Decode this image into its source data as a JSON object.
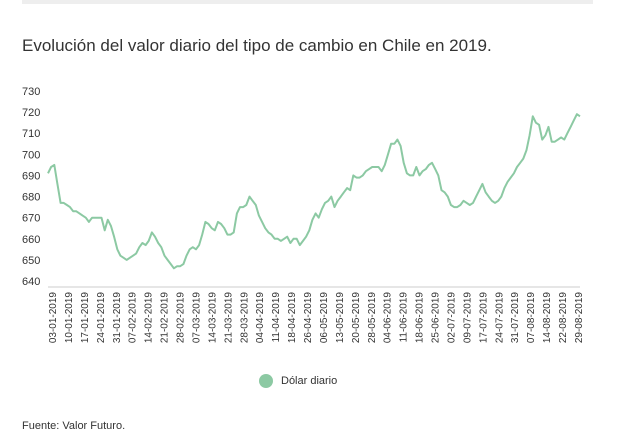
{
  "title": "Evolución del valor diario del tipo de cambio en Chile en 2019.",
  "source": "Fuente: Valor Futuro.",
  "colors": {
    "line": "#8cc9a3",
    "text": "#333333"
  },
  "chart_data": {
    "type": "line",
    "title": "Evolución del valor diario del tipo de cambio en Chile en 2019.",
    "xlabel": "",
    "ylabel": "",
    "ylim": [
      640,
      730
    ],
    "yticks": [
      730,
      720,
      710,
      700,
      690,
      680,
      670,
      660,
      650,
      640
    ],
    "grid": false,
    "legend": "bottom",
    "x_tick_labels": [
      "03-01-2019",
      "10-01-2019",
      "17-01-2019",
      "24-01-2019",
      "31-01-2019",
      "07-02-2019",
      "14-02-2019",
      "21-02-2019",
      "28-02-2019",
      "07-03-2019",
      "14-03-2019",
      "21-03-2019",
      "28-03-2019",
      "04-04-2019",
      "11-04-2019",
      "18-04-2019",
      "26-04-2019",
      "06-05-2019",
      "13-05-2019",
      "20-05-2019",
      "28-05-2019",
      "04-06-2019",
      "11-06-2019",
      "18-06-2019",
      "25-06-2019",
      "02-07-2019",
      "09-07-2019",
      "17-07-2019",
      "24-07-2019",
      "31-07-2019",
      "07-08-2019",
      "14-08-2019",
      "22-08-2019",
      "29-08-2019"
    ],
    "series": [
      {
        "name": "Dólar diario",
        "values": [
          691,
          694,
          695,
          686,
          677,
          677,
          676,
          675,
          673,
          673,
          672,
          671,
          670,
          668,
          670,
          670,
          670,
          670,
          664,
          669,
          666,
          661,
          655,
          652,
          651,
          650,
          651,
          652,
          653,
          656,
          658,
          657,
          659,
          663,
          661,
          658,
          656,
          652,
          650,
          648,
          646,
          647,
          647,
          648,
          652,
          655,
          656,
          655,
          657,
          662,
          668,
          667,
          665,
          664,
          668,
          667,
          665,
          662,
          662,
          663,
          672,
          675,
          675,
          676,
          680,
          678,
          676,
          671,
          668,
          665,
          663,
          662,
          660,
          660,
          659,
          660,
          661,
          658,
          660,
          660,
          657,
          659,
          661,
          664,
          669,
          672,
          670,
          674,
          677,
          678,
          680,
          675,
          678,
          680,
          682,
          684,
          683,
          690,
          689,
          689,
          690,
          692,
          693,
          694,
          694,
          694,
          692,
          695,
          700,
          705,
          705,
          707,
          704,
          696,
          691,
          690,
          690,
          694,
          690,
          692,
          693,
          695,
          696,
          693,
          690,
          683,
          682,
          680,
          676,
          675,
          675,
          676,
          678,
          677,
          676,
          677,
          680,
          683,
          686,
          682,
          680,
          678,
          677,
          678,
          680,
          684,
          687,
          689,
          691,
          694,
          696,
          698,
          702,
          709,
          718,
          715,
          714,
          707,
          709,
          713,
          706,
          706,
          707,
          708,
          707,
          710,
          713,
          716,
          719,
          718
        ]
      }
    ]
  },
  "legend": {
    "label": "Dólar diario"
  }
}
